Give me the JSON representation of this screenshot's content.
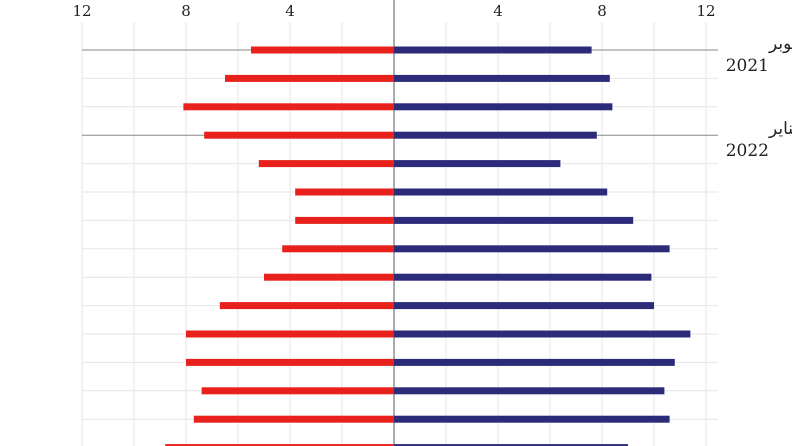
{
  "chart_data": {
    "type": "bar",
    "orientation": "horizontal",
    "layout": "diverging",
    "left_ticks": [
      "12",
      "8",
      "4"
    ],
    "right_ticks": [
      "4",
      "8",
      "12"
    ],
    "tick_values": [
      4,
      8,
      12
    ],
    "xlim": [
      0,
      12
    ],
    "grid": true,
    "row_labels": [
      {
        "row": 0,
        "month": "أكتوبر",
        "year": "2021"
      },
      {
        "row": 3,
        "month": "يناير",
        "year": "2022"
      }
    ],
    "series": [
      {
        "side": "left",
        "color": "#e8211d",
        "values": [
          5.5,
          6.5,
          8.1,
          7.3,
          5.2,
          3.8,
          3.8,
          4.3,
          5.0,
          6.7,
          8.0,
          8.0,
          7.4,
          7.7,
          8.8
        ]
      },
      {
        "side": "right",
        "color": "#2b2b7a",
        "values": [
          7.6,
          8.3,
          8.4,
          7.8,
          6.4,
          8.2,
          9.2,
          10.6,
          9.9,
          10.0,
          11.4,
          10.8,
          10.4,
          10.6,
          9.0
        ]
      }
    ]
  }
}
